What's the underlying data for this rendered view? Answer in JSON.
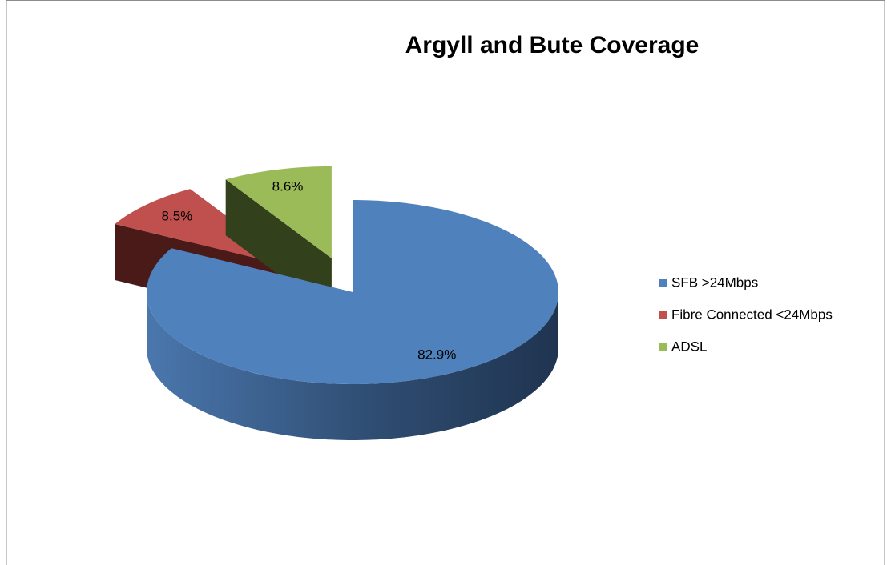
{
  "chart_data": {
    "type": "pie",
    "title": "Argyll and Bute Coverage",
    "categories": [
      "SFB >24Mbps",
      "Fibre Connected <24Mbps",
      "ADSL"
    ],
    "values": [
      82.9,
      8.5,
      8.6
    ],
    "value_labels": [
      "82.9%",
      "8.5%",
      "8.6%"
    ],
    "colors": [
      "#4f81bd",
      "#c0504d",
      "#9bbb59"
    ],
    "legend": "right"
  }
}
